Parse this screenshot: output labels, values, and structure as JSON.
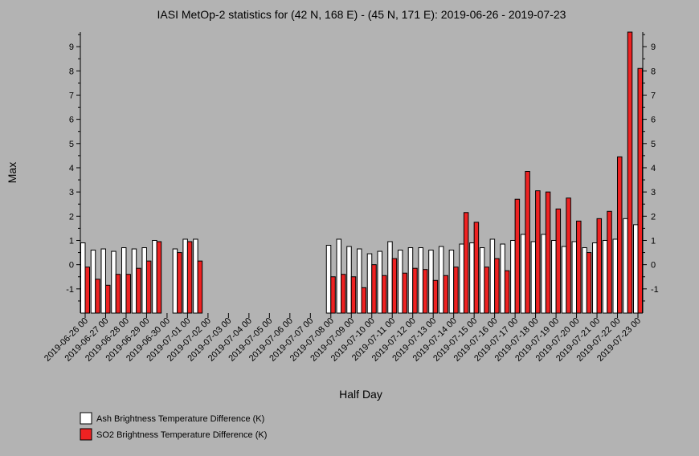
{
  "chart_data": {
    "type": "bar",
    "title": "IASI MetOp-2 statistics for (42 N, 168 E) - (45 N, 171 E): 2019-06-26 - 2019-07-23",
    "xlabel": "Half Day",
    "ylabel": "Max",
    "ylim": [
      -2.0,
      9.6
    ],
    "yticks": [
      -1,
      0,
      1,
      2,
      3,
      4,
      5,
      6,
      7,
      8,
      9
    ],
    "grid": false,
    "legend_position": "bottom-left",
    "categories": [
      "2019-06-26 00",
      "2019-06-26 12",
      "2019-06-27 00",
      "2019-06-27 12",
      "2019-06-28 00",
      "2019-06-28 12",
      "2019-06-29 00",
      "2019-06-29 12",
      "2019-06-30 00",
      "2019-06-30 12",
      "2019-07-01 00",
      "2019-07-01 12",
      "2019-07-02 00",
      "2019-07-02 12",
      "2019-07-03 00",
      "2019-07-03 12",
      "2019-07-04 00",
      "2019-07-04 12",
      "2019-07-05 00",
      "2019-07-05 12",
      "2019-07-06 00",
      "2019-07-06 12",
      "2019-07-07 00",
      "2019-07-07 12",
      "2019-07-08 00",
      "2019-07-08 12",
      "2019-07-09 00",
      "2019-07-09 12",
      "2019-07-10 00",
      "2019-07-10 12",
      "2019-07-11 00",
      "2019-07-11 12",
      "2019-07-12 00",
      "2019-07-12 12",
      "2019-07-13 00",
      "2019-07-13 12",
      "2019-07-14 00",
      "2019-07-14 12",
      "2019-07-15 00",
      "2019-07-15 12",
      "2019-07-16 00",
      "2019-07-16 12",
      "2019-07-17 00",
      "2019-07-17 12",
      "2019-07-18 00",
      "2019-07-18 12",
      "2019-07-19 00",
      "2019-07-19 12",
      "2019-07-20 00",
      "2019-07-20 12",
      "2019-07-21 00",
      "2019-07-21 12",
      "2019-07-22 00",
      "2019-07-22 12",
      "2019-07-23 00"
    ],
    "xtick_labels": [
      "2019-06-26 00",
      "2019-06-27 00",
      "2019-06-28 00",
      "2019-06-29 00",
      "2019-06-30 00",
      "2019-07-01 00",
      "2019-07-02 00",
      "2019-07-03 00",
      "2019-07-04 00",
      "2019-07-05 00",
      "2019-07-06 00",
      "2019-07-07 00",
      "2019-07-08 00",
      "2019-07-09 00",
      "2019-07-10 00",
      "2019-07-11 00",
      "2019-07-12 00",
      "2019-07-13 00",
      "2019-07-14 00",
      "2019-07-15 00",
      "2019-07-16 00",
      "2019-07-17 00",
      "2019-07-18 00",
      "2019-07-19 00",
      "2019-07-20 00",
      "2019-07-21 00",
      "2019-07-22 00",
      "2019-07-23 00"
    ],
    "series": [
      {
        "name": "Ash Brightness Temperature Difference (K)",
        "color": "#ffffff",
        "values": [
          0.9,
          0.6,
          0.65,
          0.55,
          0.7,
          0.65,
          0.7,
          1.0,
          null,
          0.65,
          1.05,
          1.05,
          null,
          null,
          null,
          null,
          null,
          null,
          null,
          null,
          null,
          null,
          null,
          null,
          0.8,
          1.05,
          0.75,
          0.65,
          0.45,
          0.55,
          0.95,
          0.6,
          0.7,
          0.7,
          0.6,
          0.75,
          0.6,
          0.85,
          0.9,
          0.7,
          1.05,
          0.85,
          1.0,
          1.25,
          0.95,
          1.25,
          1.0,
          0.75,
          0.95,
          0.7,
          0.9,
          1.0,
          1.05,
          1.9,
          1.65
        ]
      },
      {
        "name": "SO2 Brightness Temperature Difference (K)",
        "color": "#ee2222",
        "values": [
          -0.1,
          -0.6,
          -0.85,
          -0.4,
          -0.4,
          -0.15,
          0.15,
          0.95,
          null,
          0.5,
          0.95,
          0.15,
          null,
          null,
          null,
          null,
          null,
          null,
          null,
          null,
          null,
          null,
          null,
          null,
          -0.5,
          -0.4,
          -0.5,
          -0.95,
          0.0,
          -0.45,
          0.25,
          -0.35,
          -0.15,
          -0.2,
          -0.65,
          -0.45,
          -0.1,
          2.15,
          1.75,
          -0.1,
          0.25,
          -0.25,
          2.7,
          3.85,
          3.05,
          3.0,
          2.3,
          2.75,
          1.8,
          0.5,
          1.9,
          2.2,
          4.45,
          9.6,
          8.1
        ]
      }
    ]
  }
}
